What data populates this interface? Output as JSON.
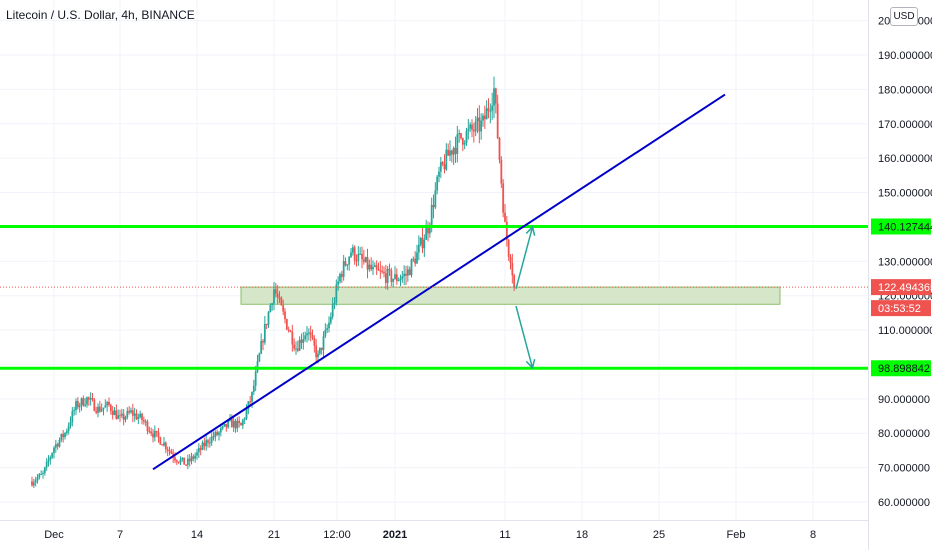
{
  "header": {
    "title": "Litecoin / U.S. Dollar, 4h, BINANCE",
    "currency_button": "USD"
  },
  "chart_data": {
    "type": "candlestick",
    "x_tick_labels": [
      "Dec",
      "7",
      "14",
      "21",
      "12:00",
      "2021",
      "11",
      "18",
      "25",
      "Feb",
      "8"
    ],
    "y_ticks": [
      60,
      70,
      80,
      90,
      110,
      120,
      130,
      150,
      160,
      170,
      180,
      190
    ],
    "y_tick_labels": [
      "60.000000",
      "70.000000",
      "80.000000",
      "90.000000",
      "110.000000",
      "120.000000",
      "130.000000",
      "150.000000",
      "160.000000",
      "170.000000",
      "180.000000",
      "190.000000"
    ],
    "top_partial_label": "200.000000",
    "ylim": [
      56,
      203
    ],
    "price_series": [
      [
        "2020-11-29",
        66
      ],
      [
        "2020-11-30",
        68
      ],
      [
        "2020-12-01",
        76
      ],
      [
        "2020-12-02",
        80
      ],
      [
        "2020-12-03",
        88
      ],
      [
        "2020-12-04",
        90
      ],
      [
        "2020-12-05",
        87
      ],
      [
        "2020-12-06",
        88
      ],
      [
        "2020-12-07",
        84
      ],
      [
        "2020-12-08",
        86
      ],
      [
        "2020-12-09",
        84
      ],
      [
        "2020-12-10",
        80
      ],
      [
        "2020-12-11",
        77
      ],
      [
        "2020-12-12",
        73
      ],
      [
        "2020-12-13",
        71
      ],
      [
        "2020-12-14",
        74
      ],
      [
        "2020-12-15",
        78
      ],
      [
        "2020-12-16",
        80
      ],
      [
        "2020-12-17",
        83
      ],
      [
        "2020-12-18",
        82
      ],
      [
        "2020-12-19",
        91
      ],
      [
        "2020-12-20",
        108
      ],
      [
        "2020-12-21",
        122
      ],
      [
        "2020-12-22",
        113
      ],
      [
        "2020-12-23",
        105
      ],
      [
        "2020-12-24",
        110
      ],
      [
        "2020-12-25",
        102
      ],
      [
        "2020-12-26",
        112
      ],
      [
        "2020-12-27",
        126
      ],
      [
        "2020-12-28",
        133
      ],
      [
        "2020-12-29",
        130
      ],
      [
        "2020-12-30",
        127
      ],
      [
        "2020-12-31",
        126
      ],
      [
        "2021-01-01",
        125
      ],
      [
        "2021-01-02",
        126
      ],
      [
        "2021-01-03",
        132
      ],
      [
        "2021-01-04",
        140
      ],
      [
        "2021-01-05",
        155
      ],
      [
        "2021-01-06",
        162
      ],
      [
        "2021-01-07",
        166
      ],
      [
        "2021-01-08",
        168
      ],
      [
        "2021-01-09",
        170
      ],
      [
        "2021-01-10",
        180
      ],
      [
        "2021-01-11",
        140
      ],
      [
        "2021-01-11T20:00",
        122.49
      ]
    ],
    "horizontal_levels": [
      {
        "value": 140.127444,
        "label": "140.127444",
        "color": "#00ff00"
      },
      {
        "value": 98.898842,
        "label": "98.898842",
        "color": "#00ff00"
      }
    ],
    "support_zone": {
      "from_date": "2020-12-18",
      "to_date": "2021-02-05",
      "low": 117.5,
      "high": 122.5,
      "color": "#cfe3c0"
    },
    "trendline": {
      "from": [
        "2020-12-10",
        69.5
      ],
      "to": [
        "2021-01-31",
        178.5
      ],
      "color": "#0000c8"
    },
    "projection_arrows": [
      {
        "from": [
          "2021-01-12",
          122
        ],
        "to": [
          "2021-01-13T12:00",
          140
        ]
      },
      {
        "from": [
          "2021-01-12",
          117
        ],
        "to": [
          "2021-01-13T12:00",
          99
        ]
      }
    ],
    "current_price": {
      "value": 122.494365,
      "label": "122.494365",
      "color": "#ef5350"
    },
    "countdown": "03:53:52",
    "up_color": "#26a69a",
    "down_color": "#ef5350",
    "grid": true
  }
}
